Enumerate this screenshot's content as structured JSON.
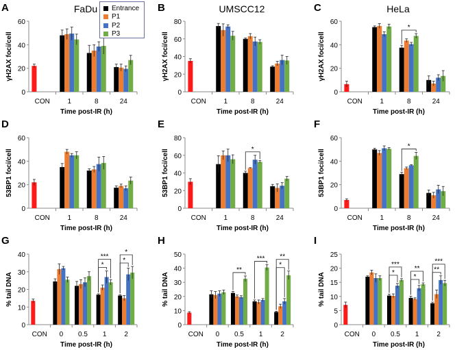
{
  "colors": {
    "CON": "#ff1a1a",
    "Entrance": "#000000",
    "P1": "#ed7d31",
    "P2": "#4472c4",
    "P3": "#70ad47"
  },
  "legend": [
    "Entrance",
    "P1",
    "P2",
    "P3"
  ],
  "chart_data": [
    {
      "type": "bar",
      "letter": "A",
      "title": "FaDu",
      "ylabel": "γH2AX foci/cell",
      "xlabel": "Time post-IR (h)",
      "ylim": [
        0,
        60
      ],
      "yticks": [
        0,
        20,
        40,
        60
      ],
      "con": {
        "label": "CON",
        "value": 22,
        "err": 1.5
      },
      "categories": [
        "1",
        "8",
        "24"
      ],
      "series": [
        {
          "name": "Entrance",
          "values": [
            48,
            33,
            21
          ],
          "err": [
            4.5,
            6.5,
            2.5
          ]
        },
        {
          "name": "P1",
          "values": [
            49,
            35,
            20.5
          ],
          "err": [
            4.5,
            5,
            3
          ]
        },
        {
          "name": "P2",
          "values": [
            49.5,
            38.5,
            19.5
          ],
          "err": [
            5.5,
            4,
            2.5
          ]
        },
        {
          "name": "P3",
          "values": [
            44.5,
            39,
            27
          ],
          "err": [
            4.5,
            7,
            4
          ]
        }
      ],
      "significance": []
    },
    {
      "type": "bar",
      "letter": "B",
      "title": "UMSCC12",
      "ylabel": "γH2AX foci/cell",
      "xlabel": "Time post-IR (h)",
      "ylim": [
        0,
        80
      ],
      "yticks": [
        0,
        20,
        40,
        60,
        80
      ],
      "con": {
        "label": "CON",
        "value": 35,
        "err": 2.5
      },
      "categories": [
        "1",
        "8",
        "24"
      ],
      "series": [
        {
          "name": "Entrance",
          "values": [
            74.5,
            60,
            28.5
          ],
          "err": [
            3,
            1,
            1
          ]
        },
        {
          "name": "P1",
          "values": [
            70,
            63,
            32
          ],
          "err": [
            7,
            3,
            2.5
          ]
        },
        {
          "name": "P2",
          "values": [
            74,
            57,
            36
          ],
          "err": [
            2,
            5,
            5.5
          ]
        },
        {
          "name": "P3",
          "values": [
            63.5,
            56.5,
            35.5
          ],
          "err": [
            5,
            2.5,
            4.5
          ]
        }
      ],
      "significance": []
    },
    {
      "type": "bar",
      "letter": "C",
      "title": "HeLa",
      "ylabel": "γH2AX foci/cell",
      "xlabel": "Time post-IR (h)",
      "ylim": [
        0,
        60
      ],
      "yticks": [
        0,
        20,
        40,
        60
      ],
      "con": {
        "label": "CON",
        "value": 6.5,
        "err": 2.5
      },
      "categories": [
        "1",
        "8",
        "24"
      ],
      "series": [
        {
          "name": "Entrance",
          "values": [
            55,
            37.5,
            10
          ],
          "err": [
            1,
            2,
            3.5
          ]
        },
        {
          "name": "P1",
          "values": [
            56,
            43.5,
            7
          ],
          "err": [
            2,
            1.5,
            2
          ]
        },
        {
          "name": "P2",
          "values": [
            49,
            40.5,
            12
          ],
          "err": [
            2,
            1.5,
            2.5
          ]
        },
        {
          "name": "P3",
          "values": [
            55.5,
            47.5,
            13.5
          ],
          "err": [
            2,
            2,
            4.5
          ]
        }
      ],
      "significance": [
        {
          "category": "8",
          "from": "Entrance",
          "to": "P3",
          "label": "*",
          "level": 0
        }
      ]
    },
    {
      "type": "bar",
      "letter": "D",
      "title": "",
      "ylabel": "53BP1 foci/cell",
      "xlabel": "Time post-IR (h)",
      "ylim": [
        0,
        60
      ],
      "yticks": [
        0,
        20,
        40,
        60
      ],
      "con": {
        "label": "CON",
        "value": 22,
        "err": 2.5
      },
      "categories": [
        "1",
        "8",
        "24"
      ],
      "series": [
        {
          "name": "Entrance",
          "values": [
            35,
            32,
            17.5
          ],
          "err": [
            3,
            1.5,
            1.5
          ]
        },
        {
          "name": "P1",
          "values": [
            48,
            33,
            19
          ],
          "err": [
            2,
            2.5,
            1.5
          ]
        },
        {
          "name": "P2",
          "values": [
            45,
            37.5,
            17
          ],
          "err": [
            1.5,
            6,
            2
          ]
        },
        {
          "name": "P3",
          "values": [
            45,
            38.5,
            23.5
          ],
          "err": [
            3,
            5.5,
            3
          ]
        }
      ],
      "significance": []
    },
    {
      "type": "bar",
      "letter": "E",
      "title": "",
      "ylabel": "53BP1 foci/cell",
      "xlabel": "Time post-IR (h)",
      "ylim": [
        0,
        80
      ],
      "yticks": [
        0,
        20,
        40,
        60,
        80
      ],
      "con": {
        "label": "CON",
        "value": 30,
        "err": 3.5
      },
      "categories": [
        "1",
        "8",
        "24"
      ],
      "series": [
        {
          "name": "Entrance",
          "values": [
            50,
            40,
            25
          ],
          "err": [
            9.5,
            2,
            2
          ]
        },
        {
          "name": "P1",
          "values": [
            60,
            45.5,
            23
          ],
          "err": [
            5,
            0.5,
            4.5
          ]
        },
        {
          "name": "P2",
          "values": [
            60,
            55,
            25.5
          ],
          "err": [
            7,
            5,
            3.5
          ]
        },
        {
          "name": "P3",
          "values": [
            55.5,
            52.5,
            33.5
          ],
          "err": [
            5,
            1.5,
            2.5
          ]
        }
      ],
      "significance": [
        {
          "category": "8",
          "from": "Entrance",
          "to": "P3",
          "label": "*",
          "level": 0
        }
      ]
    },
    {
      "type": "bar",
      "letter": "F",
      "title": "",
      "ylabel": "53BP1 foci/cell",
      "xlabel": "Time post-IR (h)",
      "ylim": [
        0,
        60
      ],
      "yticks": [
        0,
        20,
        40,
        60
      ],
      "con": {
        "label": "CON",
        "value": 7,
        "err": 1
      },
      "categories": [
        "1",
        "8",
        "24"
      ],
      "series": [
        {
          "name": "Entrance",
          "values": [
            50,
            29,
            13
          ],
          "err": [
            1,
            1.5,
            2.5
          ]
        },
        {
          "name": "P1",
          "values": [
            47,
            34,
            11
          ],
          "err": [
            2,
            1,
            2.5
          ]
        },
        {
          "name": "P2",
          "values": [
            51,
            36.5,
            16
          ],
          "err": [
            2,
            0.5,
            3.5
          ]
        },
        {
          "name": "P3",
          "values": [
            50.5,
            44.5,
            14.5
          ],
          "err": [
            1,
            3,
            4
          ]
        }
      ],
      "significance": [
        {
          "category": "8",
          "from": "Entrance",
          "to": "P3",
          "label": "*",
          "level": 0
        }
      ]
    },
    {
      "type": "bar",
      "letter": "G",
      "title": "",
      "ylabel": "% tail DNA",
      "xlabel": "Time post-IR (h)",
      "ylim": [
        0,
        40
      ],
      "yticks": [
        0,
        10,
        20,
        30,
        40
      ],
      "con": {
        "label": "CON",
        "value": 13.5,
        "err": 1
      },
      "categories": [
        "0",
        "0.5",
        "1",
        "2"
      ],
      "series": [
        {
          "name": "Entrance",
          "values": [
            24.5,
            22,
            17,
            16.5
          ],
          "err": [
            1.5,
            2.5,
            0.5,
            0.5
          ]
        },
        {
          "name": "P1",
          "values": [
            31.5,
            23,
            21,
            15
          ],
          "err": [
            3,
            2.5,
            1.5,
            1.5
          ]
        },
        {
          "name": "P2",
          "values": [
            32,
            24,
            27,
            28.5
          ],
          "err": [
            1,
            2.5,
            3.5,
            3.5
          ]
        },
        {
          "name": "P3",
          "values": [
            25.5,
            27.5,
            24,
            29.5
          ],
          "err": [
            1.5,
            2.5,
            1.5,
            3.5
          ]
        }
      ],
      "significance": [
        {
          "category": "1",
          "from": "Entrance",
          "to": "P2",
          "label": "*",
          "level": 0
        },
        {
          "category": "1",
          "from": "Entrance",
          "to": "P3",
          "label": "***",
          "level": 1
        },
        {
          "category": "2",
          "from": "Entrance",
          "to": "P2",
          "label": "*",
          "level": 0
        },
        {
          "category": "2",
          "from": "Entrance",
          "to": "P3",
          "label": "*",
          "level": 1
        }
      ]
    },
    {
      "type": "bar",
      "letter": "H",
      "title": "",
      "ylabel": "% tail DNA",
      "xlabel": "Time post-IR (h)",
      "ylim": [
        0,
        50
      ],
      "yticks": [
        0,
        10,
        20,
        30,
        40,
        50
      ],
      "con": {
        "label": "CON",
        "value": 8.5,
        "err": 0.7
      },
      "categories": [
        "0",
        "0.5",
        "1",
        "2"
      ],
      "series": [
        {
          "name": "Entrance",
          "values": [
            21.5,
            22.5,
            16.5,
            9
          ],
          "err": [
            2.5,
            1,
            1,
            0.5
          ]
        },
        {
          "name": "P1",
          "values": [
            21,
            20,
            16,
            13
          ],
          "err": [
            2.5,
            1,
            1.5,
            1.5
          ]
        },
        {
          "name": "P2",
          "values": [
            22,
            19.5,
            17.5,
            16.5
          ],
          "err": [
            2,
            1,
            1,
            2
          ]
        },
        {
          "name": "P3",
          "values": [
            23,
            32.5,
            40.5,
            35
          ],
          "err": [
            1.5,
            2,
            2,
            3
          ]
        }
      ],
      "significance": [
        {
          "category": "0.5",
          "from": "Entrance",
          "to": "P3",
          "label": "**",
          "level": 0
        },
        {
          "category": "1",
          "from": "Entrance",
          "to": "P3",
          "label": "***",
          "level": 0
        },
        {
          "category": "2",
          "from": "Entrance",
          "to": "P2",
          "label": "*",
          "level": 0
        },
        {
          "category": "2",
          "from": "Entrance",
          "to": "P3",
          "label": "**",
          "level": 1
        }
      ]
    },
    {
      "type": "bar",
      "letter": "I",
      "title": "",
      "ylabel": "% tail DNA",
      "xlabel": "Time post-IR (h)",
      "ylim": [
        0,
        25
      ],
      "yticks": [
        0,
        5,
        10,
        15,
        20,
        25
      ],
      "con": {
        "label": "CON",
        "value": 7,
        "err": 1
      },
      "categories": [
        "0",
        "0.5",
        "1",
        "2"
      ],
      "series": [
        {
          "name": "Entrance",
          "values": [
            17,
            10.3,
            9.5,
            7.6
          ],
          "err": [
            0.3,
            0.5,
            0.6,
            0.4
          ]
        },
        {
          "name": "P1",
          "values": [
            18.5,
            10.2,
            9.1,
            10.8
          ],
          "err": [
            0.8,
            0.7,
            0.4,
            1.5
          ]
        },
        {
          "name": "P2",
          "values": [
            16.5,
            13.8,
            12.9,
            15.8
          ],
          "err": [
            1.5,
            0.8,
            1,
            1.5
          ]
        },
        {
          "name": "P3",
          "values": [
            16.5,
            15.8,
            14.3,
            14.7
          ],
          "err": [
            0.8,
            0.5,
            0.5,
            1
          ]
        }
      ],
      "significance": [
        {
          "category": "0.5",
          "from": "Entrance",
          "to": "P2",
          "label": "*",
          "level": 0
        },
        {
          "category": "0.5",
          "from": "Entrance",
          "to": "P3",
          "label": "***",
          "level": 1
        },
        {
          "category": "1",
          "from": "Entrance",
          "to": "P2",
          "label": "*",
          "level": 0
        },
        {
          "category": "1",
          "from": "Entrance",
          "to": "P3",
          "label": "**",
          "level": 1
        },
        {
          "category": "2",
          "from": "Entrance",
          "to": "P2",
          "label": "**",
          "level": 0
        },
        {
          "category": "2",
          "from": "Entrance",
          "to": "P3",
          "label": "***",
          "level": 1
        }
      ]
    }
  ]
}
